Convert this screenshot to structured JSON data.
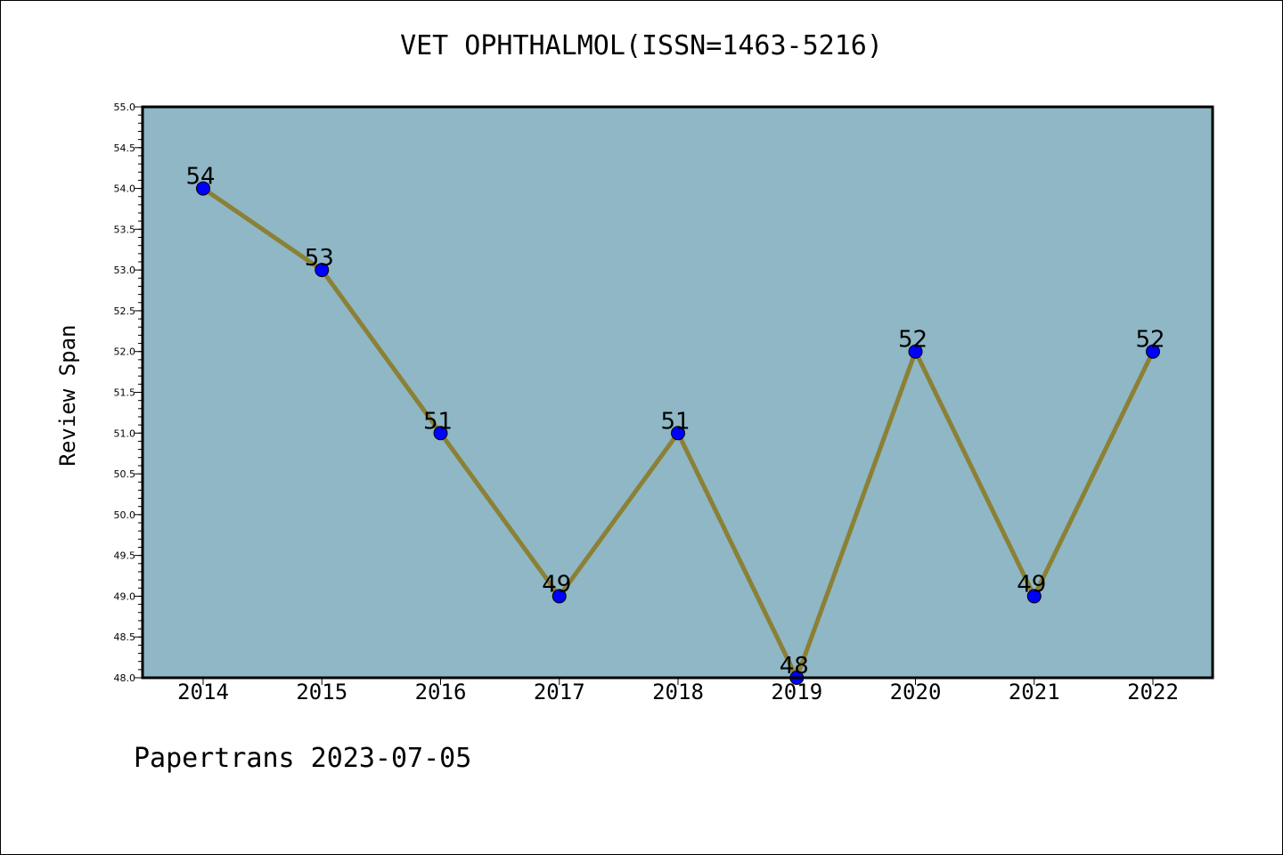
{
  "colors": {
    "plot_background": "#8fb7c5",
    "line": "#8b8035",
    "marker": "#0000ff"
  },
  "chart_data": {
    "type": "line",
    "title": "VET OPHTHALMOL(ISSN=1463-5216)",
    "xlabel": "",
    "ylabel": "Review Span",
    "categories": [
      "2014",
      "2015",
      "2016",
      "2017",
      "2018",
      "2019",
      "2020",
      "2021",
      "2022"
    ],
    "values": [
      54,
      53,
      51,
      49,
      51,
      48,
      52,
      49,
      52
    ],
    "point_labels": [
      "54",
      "53",
      "51",
      "49",
      "51",
      "48",
      "52",
      "49",
      "52"
    ],
    "ylim": [
      48.0,
      55.0
    ],
    "y_ticks": [
      "48.0",
      "48.5",
      "49.0",
      "49.5",
      "50.0",
      "50.5",
      "51.0",
      "51.5",
      "52.0",
      "52.5",
      "53.0",
      "53.5",
      "54.0",
      "54.5",
      "55.0"
    ],
    "grid": false,
    "legend": "none"
  },
  "footer": {
    "text": "Papertrans 2023-07-05"
  }
}
